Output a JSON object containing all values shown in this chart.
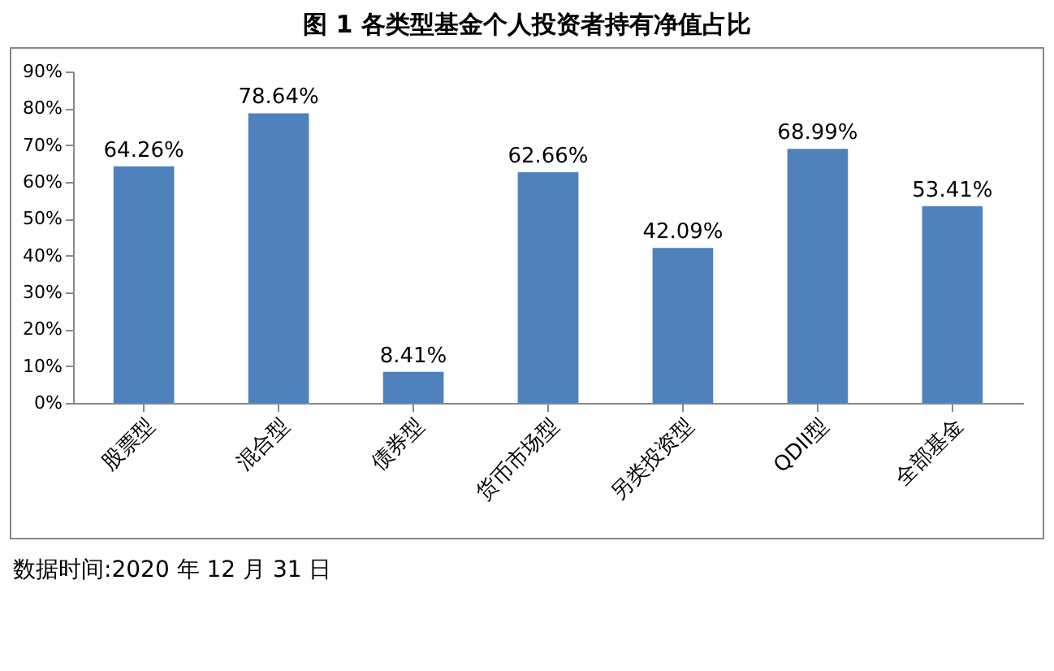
{
  "chart_data": {
    "type": "bar",
    "title": "图 1 各类型基金个人投资者持有净值占比",
    "categories": [
      "股票型",
      "混合型",
      "债券型",
      "货币市场型",
      "另类投资型",
      "QDII型",
      "全部基金"
    ],
    "values": [
      64.26,
      78.64,
      8.41,
      62.66,
      42.09,
      68.99,
      53.41
    ],
    "value_labels": [
      "64.26%",
      "78.64%",
      "8.41%",
      "62.66%",
      "42.09%",
      "68.99%",
      "53.41%"
    ],
    "color": "#4f81bd",
    "ylim": [
      0,
      90
    ],
    "yticks": [
      {
        "value": 0,
        "label": "0%"
      },
      {
        "value": 10,
        "label": "10%"
      },
      {
        "value": 20,
        "label": "20%"
      },
      {
        "value": 30,
        "label": "30%"
      },
      {
        "value": 40,
        "label": "40%"
      },
      {
        "value": 50,
        "label": "50%"
      },
      {
        "value": 60,
        "label": "60%"
      },
      {
        "value": 70,
        "label": "70%"
      },
      {
        "value": 80,
        "label": "80%"
      },
      {
        "value": 90,
        "label": "90%"
      }
    ],
    "grid": false,
    "annotations": [
      "数据时间:2020 年 12 月 31 日"
    ]
  }
}
